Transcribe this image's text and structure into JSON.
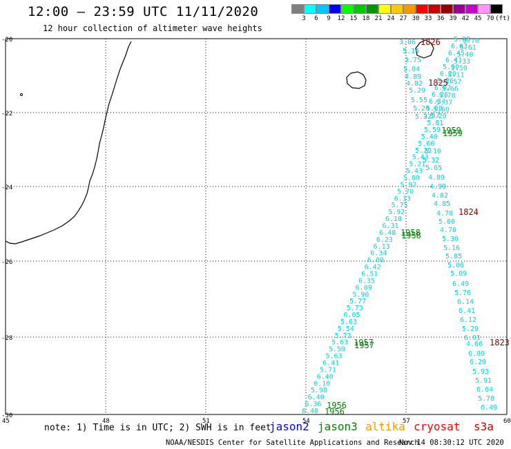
{
  "header": {
    "title": "12:00 — 23:59 UTC 11/11/2020",
    "subtitle": "12 hour collection of altimeter wave heights"
  },
  "legend": {
    "colors": [
      "#7f7f7f",
      "#00ffff",
      "#00c8ff",
      "#0000ff",
      "#00ff00",
      "#00c800",
      "#009600",
      "#ffff00",
      "#ffc800",
      "#ff9600",
      "#ff0000",
      "#c80000",
      "#960000",
      "#960096",
      "#c800c8",
      "#ff96ff",
      "#000000"
    ],
    "labels": [
      "3",
      "6",
      "9",
      "12",
      "15",
      "18",
      "21",
      "24",
      "27",
      "30",
      "33",
      "36",
      "39",
      "42",
      "45",
      "70",
      "(ft)"
    ]
  },
  "axes": {
    "lat_labels": [
      "-20",
      "-22",
      "-24",
      "-26",
      "-28",
      "-30"
    ],
    "lon_labels": [
      "45",
      "48",
      "51",
      "54",
      "57",
      "60"
    ]
  },
  "track_west": [
    "6.40",
    "6.36",
    "6.40",
    "5.98",
    "6.10",
    "6.40",
    "5.71",
    "6.41",
    "5.63",
    "5.59",
    "5.63",
    "5.73",
    "5.54",
    "5.63",
    "6.05",
    "5.73",
    "5.77",
    "5.90",
    "6.09",
    "6.35",
    "6.51",
    "6.42",
    "6.00",
    "6.34",
    "6.13",
    "6.23",
    "6.48",
    "6.31",
    "6.18",
    "5.92",
    "5.75",
    "6.13",
    "5.70",
    "5.92",
    "5.80",
    "5.43",
    "5.21",
    "5.43",
    "5.29",
    "5.60",
    "5.40",
    "5.59",
    "5.81",
    "5.20",
    "5.60",
    "5.37",
    "5.78",
    "5.66",
    "5.57",
    "5.11",
    "5.50",
    "5.33",
    "5.40",
    "5.61",
    "5.70"
  ],
  "track_east": [
    {
      "v": "3.86"
    },
    {
      "v": "5.14"
    },
    {
      "v": "3.75"
    },
    {
      "v": "5.04"
    },
    {
      "v": "4.89"
    },
    {
      "v": "4.82"
    },
    {
      "v": "5.29"
    },
    {
      "v": "5.55"
    },
    {
      "v": "5.20"
    },
    {
      "v": "5.32"
    },
    {
      "v": "5.10"
    },
    {
      "v": "5.32"
    },
    {
      "v": "5.65"
    },
    {
      "v": "4.89"
    },
    {
      "v": "4.99"
    },
    {
      "v": "4.82"
    },
    {
      "v": "4.85"
    },
    {
      "v": "4.70"
    },
    {
      "v": "5.00"
    },
    {
      "v": "4.70"
    },
    {
      "v": "5.30"
    },
    {
      "v": "5.16"
    },
    {
      "v": "5.85"
    },
    {
      "v": "5.06"
    },
    {
      "v": "5.09"
    },
    {
      "v": "6.49"
    },
    {
      "v": "5.76"
    },
    {
      "v": "6.14"
    },
    {
      "v": "6.41"
    },
    {
      "v": "6.12"
    },
    {
      "v": "5.29"
    },
    {
      "v": "6.01"
    },
    {
      "v": "4.66"
    },
    {
      "v": "6.00"
    },
    {
      "v": "6.20"
    },
    {
      "v": "5.93"
    },
    {
      "v": "5.91"
    },
    {
      "v": "6.64"
    },
    {
      "v": "5.78"
    },
    {
      "v": "6.49"
    }
  ],
  "track_east_outer": [
    "5.88",
    "6.03",
    "6.45",
    "6.41",
    "5.90",
    "6.20",
    "5.26",
    "6.02",
    "6.26",
    "6.34",
    "5.88",
    "5.57"
  ],
  "time_labels": [
    {
      "t": "1826",
      "color": "#800000"
    },
    {
      "t": "1825",
      "color": "#800000"
    },
    {
      "t": "1959",
      "color": "#008000"
    },
    {
      "t": "1959",
      "color": "#008000"
    },
    {
      "t": "1824",
      "color": "#800000"
    },
    {
      "t": "1958",
      "color": "#008000"
    },
    {
      "t": "1958",
      "color": "#008000"
    },
    {
      "t": "1957",
      "color": "#008000"
    },
    {
      "t": "1957",
      "color": "#008000"
    },
    {
      "t": "1823",
      "color": "#800000"
    },
    {
      "t": "1956",
      "color": "#008000"
    },
    {
      "t": "1956",
      "color": "#008000"
    }
  ],
  "footer": {
    "note": "note: 1) Time is in UTC; 2) SWH is in feet",
    "satellites": [
      {
        "name": "jason2",
        "color": "#0000ff"
      },
      {
        "name": "jason3",
        "color": "#008000"
      },
      {
        "name": "altika",
        "color": "#ff9600"
      },
      {
        "name": "cryosat",
        "color": "#ff0000"
      },
      {
        "name": "s3a",
        "color": "#c80000"
      }
    ],
    "credit": "NOAA/NESDIS Center for Satellite Applications and Research",
    "timestamp": "Nov 14 08:30:12 UTC 2020"
  },
  "track_color": "#00d4e0"
}
